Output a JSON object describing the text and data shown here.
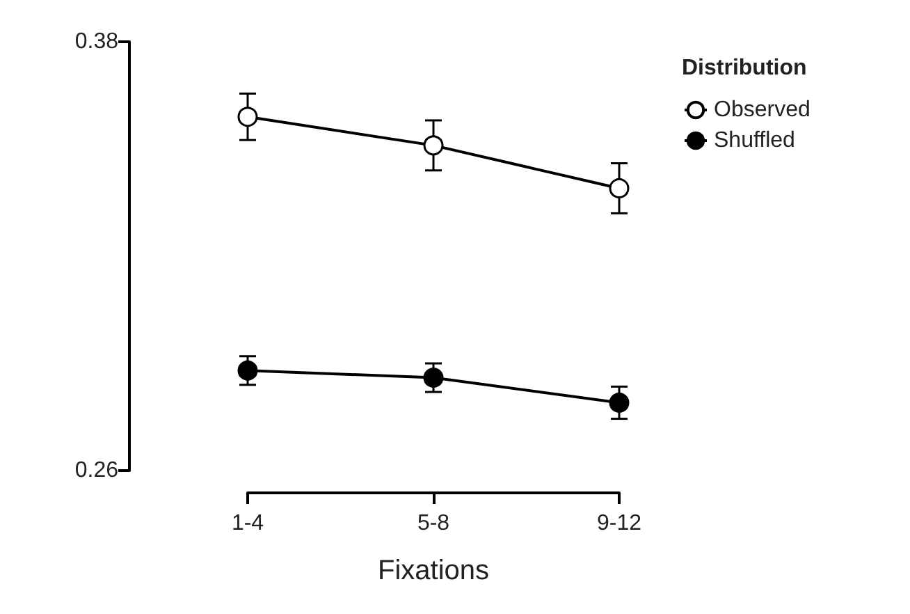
{
  "chart_data": {
    "type": "line",
    "xlabel": "Fixations",
    "legend_title": "Distribution",
    "categories": [
      "1-4",
      "5-8",
      "9-12"
    ],
    "series": [
      {
        "name": "Observed",
        "color": "#ffffff",
        "values": [
          0.359,
          0.351,
          0.339
        ],
        "errors": [
          0.0065,
          0.007,
          0.007
        ]
      },
      {
        "name": "Shuffled",
        "color": "#000000",
        "values": [
          0.288,
          0.286,
          0.279
        ],
        "errors": [
          0.004,
          0.004,
          0.0045
        ]
      }
    ],
    "ylim": [
      0.26,
      0.38
    ],
    "yticks": [
      0.26,
      0.38
    ],
    "grid": false,
    "legend": "top right",
    "marker": "circle",
    "line_style": "solid"
  }
}
